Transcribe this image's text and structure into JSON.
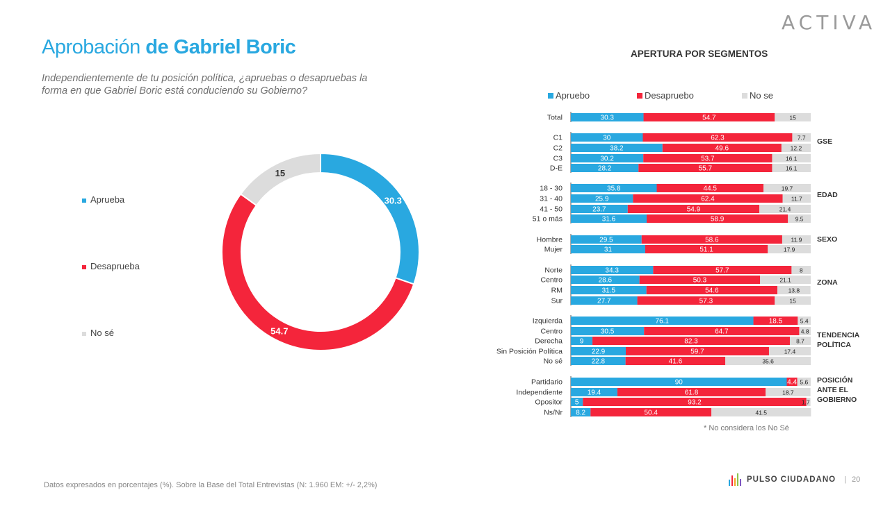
{
  "brand": {
    "logo_text": "ACTIVA",
    "footer_brand": "PULSO CIUDADANO",
    "page_number": "20"
  },
  "title": {
    "light": "Aprobación",
    "bold": "de Gabriel Boric"
  },
  "subtitle": "Independientemente de tu posición política, ¿apruebas o desapruebas la forma en que Gabriel Boric está conduciendo su Gobierno?",
  "footer_note": "Datos expresados en porcentajes (%). Sobre la Base del Total Entrevistas (N:  1.960   EM: +/- 2,2%)",
  "footnote": "* No considera los No Sé",
  "colors": {
    "aprueba": "#29a8e0",
    "desaprueba": "#f4253b",
    "nose": "#dcdcdc"
  },
  "chart_data": [
    {
      "type": "pie",
      "variant": "donut",
      "legend": [
        "Aprueba",
        "Desaprueba",
        "No sé"
      ],
      "categories": [
        "Aprueba",
        "Desaprueba",
        "No sé"
      ],
      "values": [
        30.3,
        54.7,
        15
      ],
      "value_labels": [
        "30.3",
        "54.7",
        "15"
      ]
    },
    {
      "type": "bar",
      "orientation": "horizontal",
      "stacked": true,
      "title": "APERTURA POR SEGMENTOS",
      "legend": [
        "Apruebo",
        "Desapruebo",
        "No se"
      ],
      "xlim": [
        0,
        100
      ],
      "groups": [
        {
          "label": "",
          "rows": [
            {
              "label": "Total",
              "values": [
                30.3,
                54.7,
                15
              ],
              "text": [
                "30.3",
                "54.7",
                "15"
              ]
            }
          ]
        },
        {
          "label": "GSE",
          "rows": [
            {
              "label": "C1",
              "values": [
                30,
                62.3,
                7.7
              ],
              "text": [
                "30",
                "62.3",
                "7.7"
              ]
            },
            {
              "label": "C2",
              "values": [
                38.2,
                49.6,
                12.2
              ],
              "text": [
                "38.2",
                "49.6",
                "12.2"
              ]
            },
            {
              "label": "C3",
              "values": [
                30.2,
                53.7,
                16.1
              ],
              "text": [
                "30.2",
                "53.7",
                "16.1"
              ]
            },
            {
              "label": "D-E",
              "values": [
                28.2,
                55.7,
                16.1
              ],
              "text": [
                "28.2",
                "55.7",
                "16.1"
              ]
            }
          ]
        },
        {
          "label": "EDAD",
          "rows": [
            {
              "label": "18 - 30",
              "values": [
                35.8,
                44.5,
                19.7
              ],
              "text": [
                "35.8",
                "44.5",
                "19.7"
              ]
            },
            {
              "label": "31 - 40",
              "values": [
                25.9,
                62.4,
                11.7
              ],
              "text": [
                "25.9",
                "62.4",
                "11.7"
              ]
            },
            {
              "label": "41 - 50",
              "values": [
                23.7,
                54.9,
                21.4
              ],
              "text": [
                "23.7",
                "54.9",
                "21.4"
              ]
            },
            {
              "label": "51 o más",
              "values": [
                31.6,
                58.9,
                9.5
              ],
              "text": [
                "31.6",
                "58.9",
                "9.5"
              ]
            }
          ]
        },
        {
          "label": "SEXO",
          "rows": [
            {
              "label": "Hombre",
              "values": [
                29.5,
                58.6,
                11.9
              ],
              "text": [
                "29.5",
                "58.6",
                "11.9"
              ]
            },
            {
              "label": "Mujer",
              "values": [
                31,
                51.1,
                17.9
              ],
              "text": [
                "31",
                "51.1",
                "17.9"
              ]
            }
          ]
        },
        {
          "label": "ZONA",
          "rows": [
            {
              "label": "Norte",
              "values": [
                34.3,
                57.7,
                8
              ],
              "text": [
                "34.3",
                "57.7",
                "8"
              ]
            },
            {
              "label": "Centro",
              "values": [
                28.6,
                50.3,
                21.1
              ],
              "text": [
                "28.6",
                "50.3",
                "21.1"
              ]
            },
            {
              "label": "RM",
              "values": [
                31.5,
                54.6,
                13.8
              ],
              "text": [
                "31.5",
                "54.6",
                "13.8"
              ]
            },
            {
              "label": "Sur",
              "values": [
                27.7,
                57.3,
                15
              ],
              "text": [
                "27.7",
                "57.3",
                "15"
              ]
            }
          ]
        },
        {
          "label": "TENDENCIA POLÍTICA",
          "label_lines": [
            "TENDENCIA",
            "POLÍTICA"
          ],
          "rows": [
            {
              "label": "Izquierda",
              "values": [
                76.1,
                18.5,
                5.4
              ],
              "text": [
                "76.1",
                "18.5",
                "5.4"
              ]
            },
            {
              "label": "Centro",
              "values": [
                30.5,
                64.7,
                4.8
              ],
              "text": [
                "30.5",
                "64.7",
                "4.8"
              ]
            },
            {
              "label": "Derecha",
              "values": [
                9,
                82.3,
                8.7
              ],
              "text": [
                "9",
                "82.3",
                "8.7"
              ]
            },
            {
              "label": "Sin Posición Política",
              "values": [
                22.9,
                59.7,
                17.4
              ],
              "text": [
                "22.9",
                "59.7",
                "17.4"
              ]
            },
            {
              "label": "No sé",
              "values": [
                22.8,
                41.6,
                35.6
              ],
              "text": [
                "22.8",
                "41.6",
                "35.6"
              ]
            }
          ]
        },
        {
          "label": "POSICIÓN ANTE EL GOBIERNO",
          "label_lines": [
            "POSICIÓN",
            "ANTE EL",
            "GOBIERNO"
          ],
          "rows": [
            {
              "label": "Partidario",
              "values": [
                90,
                4.4,
                5.6
              ],
              "text": [
                "90",
                "4.4",
                "5.6"
              ]
            },
            {
              "label": "Independiente",
              "values": [
                19.4,
                61.8,
                18.7
              ],
              "text": [
                "19.4",
                "61.8",
                "18.7"
              ]
            },
            {
              "label": "Opositor",
              "values": [
                5,
                93.2,
                1.7
              ],
              "text": [
                "5",
                "93.2",
                "1.7"
              ]
            },
            {
              "label": "Ns/Nr",
              "values": [
                8.2,
                50.4,
                41.5
              ],
              "text": [
                "8.2",
                "50.4",
                "41.5"
              ]
            }
          ]
        }
      ]
    }
  ]
}
